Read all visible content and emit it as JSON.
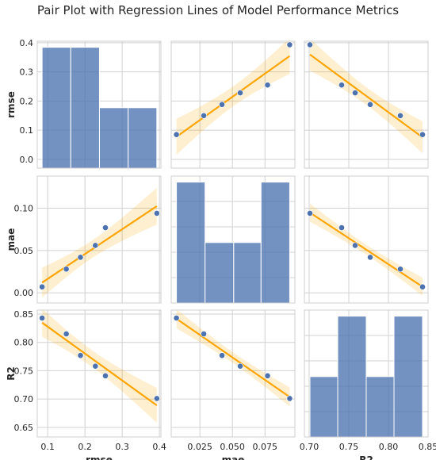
{
  "chart_data": {
    "type": "pairplot",
    "title": "Pair Plot with Regression Lines of Model Performance Metrics",
    "variables": [
      "rmse",
      "mae",
      "R2"
    ],
    "observations": [
      {
        "rmse": 0.085,
        "mae": 0.007,
        "R2": 0.843
      },
      {
        "rmse": 0.15,
        "mae": 0.028,
        "R2": 0.815
      },
      {
        "rmse": 0.188,
        "mae": 0.042,
        "R2": 0.777
      },
      {
        "rmse": 0.228,
        "mae": 0.056,
        "R2": 0.758
      },
      {
        "rmse": 0.255,
        "mae": 0.077,
        "R2": 0.741
      },
      {
        "rmse": 0.393,
        "mae": 0.094,
        "R2": 0.701
      }
    ],
    "axes": {
      "rmse": {
        "range": [
          0.072,
          0.404
        ],
        "ticks": [
          0.0,
          0.1,
          0.2,
          0.3,
          0.4
        ],
        "tick_labels": [
          "0.0",
          "0.1",
          "0.2",
          "0.3",
          "0.4"
        ],
        "tick_labels_y": [
          "0.0",
          "0.1",
          "0.2",
          "0.3",
          "0.4"
        ],
        "y_range": [
          -0.03,
          0.405
        ]
      },
      "mae": {
        "range": [
          0.003,
          0.098
        ],
        "ticks": [
          0.025,
          0.05,
          0.075
        ],
        "tick_labels": [
          "0.025",
          "0.050",
          "0.075"
        ],
        "y_range": [
          -0.012,
          0.138
        ],
        "y_ticks": [
          0.0,
          0.05,
          0.1
        ],
        "tick_labels_y": [
          "0.00",
          "0.05",
          "0.10"
        ]
      },
      "R2": {
        "range": [
          0.694,
          0.85
        ],
        "ticks": [
          0.7,
          0.75,
          0.8,
          0.85
        ],
        "tick_labels": [
          "0.70",
          "0.75",
          "0.80",
          "0.85"
        ],
        "y_range": [
          0.633,
          0.857
        ],
        "y_ticks": [
          0.65,
          0.7,
          0.75,
          0.8,
          0.85
        ],
        "tick_labels_y": [
          "0.65",
          "0.70",
          "0.75",
          "0.80",
          "0.85"
        ]
      }
    },
    "histograms": {
      "rmse": {
        "bin_edges": [
          0.085,
          0.162,
          0.239,
          0.316,
          0.393
        ],
        "counts": [
          2,
          2,
          1,
          1
        ]
      },
      "mae": {
        "bin_edges": [
          0.007,
          0.029,
          0.051,
          0.072,
          0.094
        ],
        "counts": [
          2,
          1,
          1,
          2
        ]
      },
      "R2": {
        "bin_edges": [
          0.701,
          0.736,
          0.772,
          0.807,
          0.843
        ],
        "counts": [
          1,
          2,
          1,
          2
        ]
      }
    },
    "grid": true,
    "colors": {
      "points": "#4c72b0",
      "bars": "#4c72b0",
      "regression": "#ffa500",
      "band": "#ffa500",
      "grid": "#d0d0d0",
      "spine": "#cfcfcf"
    }
  }
}
